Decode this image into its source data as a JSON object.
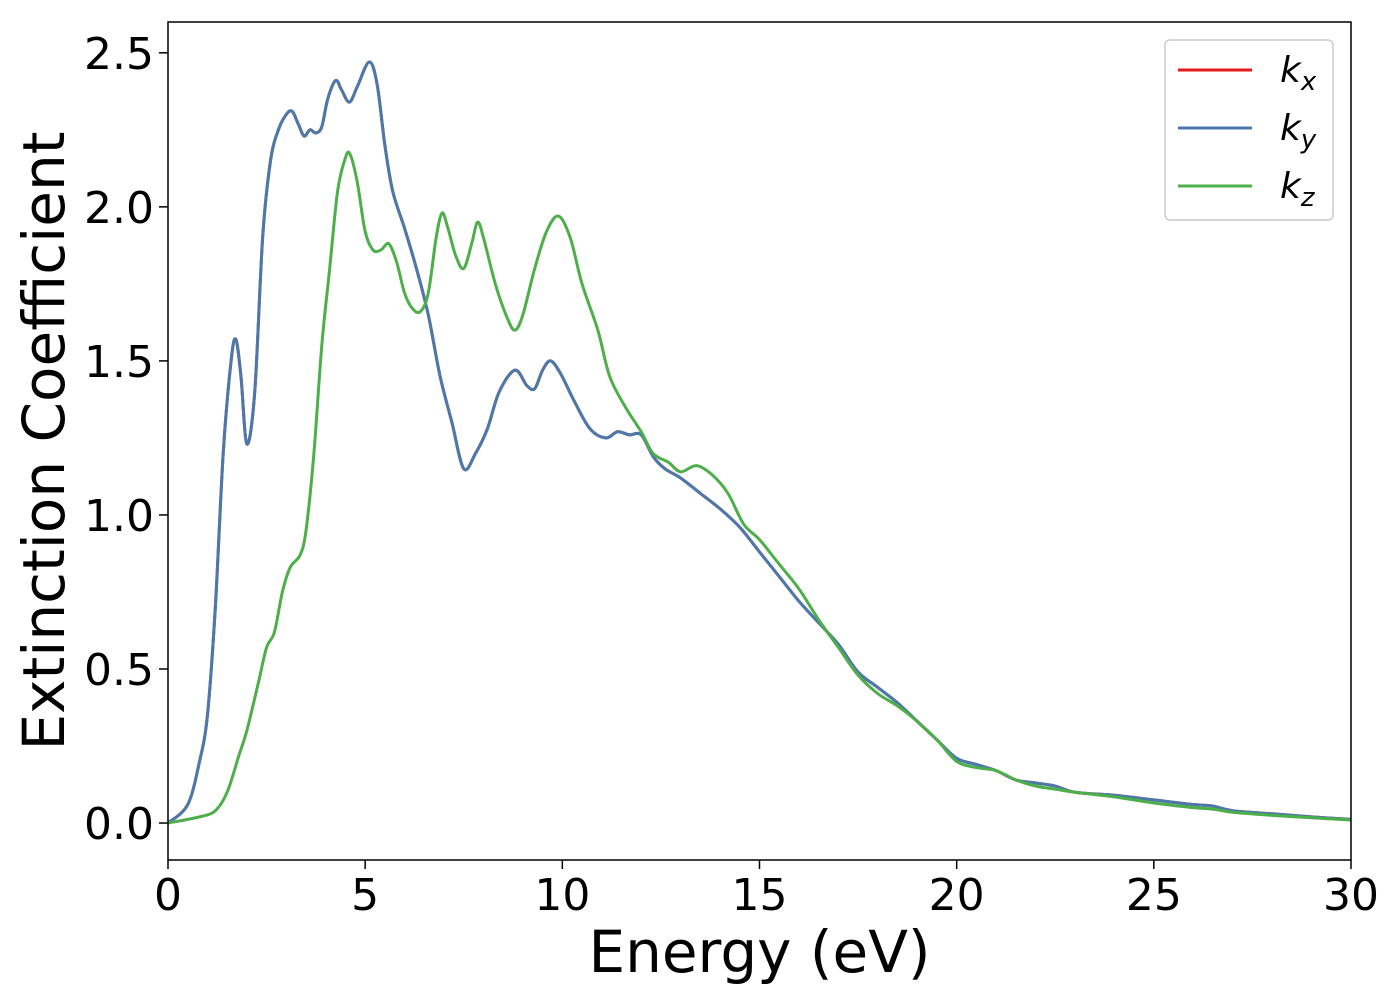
{
  "chart_data": {
    "type": "line",
    "xlabel": "Energy (eV)",
    "ylabel": "Extinction Coefficient",
    "xlim": [
      0,
      30
    ],
    "ylim": [
      -0.12,
      2.6
    ],
    "xticks": [
      0,
      5,
      10,
      15,
      20,
      25,
      30
    ],
    "yticks": [
      0.0,
      0.5,
      1.0,
      1.5,
      2.0,
      2.5
    ],
    "xtick_labels": [
      "0",
      "5",
      "10",
      "15",
      "20",
      "25",
      "30"
    ],
    "ytick_labels": [
      "0.0",
      "0.5",
      "1.0",
      "1.5",
      "2.0",
      "2.5"
    ],
    "grid": false,
    "legend_position": "top-right",
    "series": [
      {
        "name": "k",
        "subscript": "x",
        "color": "#e41a1c",
        "points": [
          [
            0,
            0
          ],
          [
            0.5,
            0.06
          ],
          [
            0.8,
            0.2
          ],
          [
            1.0,
            0.35
          ],
          [
            1.2,
            0.7
          ],
          [
            1.4,
            1.2
          ],
          [
            1.6,
            1.5
          ],
          [
            1.72,
            1.57
          ],
          [
            1.85,
            1.45
          ],
          [
            2.0,
            1.23
          ],
          [
            2.2,
            1.4
          ],
          [
            2.4,
            1.9
          ],
          [
            2.6,
            2.15
          ],
          [
            2.8,
            2.25
          ],
          [
            3.0,
            2.3
          ],
          [
            3.15,
            2.31
          ],
          [
            3.3,
            2.27
          ],
          [
            3.45,
            2.23
          ],
          [
            3.6,
            2.25
          ],
          [
            3.75,
            2.24
          ],
          [
            3.9,
            2.26
          ],
          [
            4.05,
            2.35
          ],
          [
            4.25,
            2.41
          ],
          [
            4.4,
            2.38
          ],
          [
            4.6,
            2.34
          ],
          [
            4.8,
            2.39
          ],
          [
            5.1,
            2.47
          ],
          [
            5.3,
            2.4
          ],
          [
            5.5,
            2.2
          ],
          [
            5.7,
            2.05
          ],
          [
            6.0,
            1.93
          ],
          [
            6.3,
            1.8
          ],
          [
            6.6,
            1.65
          ],
          [
            6.9,
            1.45
          ],
          [
            7.2,
            1.3
          ],
          [
            7.5,
            1.15
          ],
          [
            7.8,
            1.2
          ],
          [
            8.1,
            1.28
          ],
          [
            8.4,
            1.4
          ],
          [
            8.8,
            1.47
          ],
          [
            9.1,
            1.42
          ],
          [
            9.3,
            1.41
          ],
          [
            9.5,
            1.47
          ],
          [
            9.7,
            1.5
          ],
          [
            9.95,
            1.46
          ],
          [
            10.3,
            1.37
          ],
          [
            10.7,
            1.28
          ],
          [
            11.1,
            1.25
          ],
          [
            11.4,
            1.27
          ],
          [
            11.7,
            1.26
          ],
          [
            12.0,
            1.26
          ],
          [
            12.3,
            1.19
          ],
          [
            12.6,
            1.15
          ],
          [
            13.0,
            1.12
          ],
          [
            13.5,
            1.07
          ],
          [
            14.0,
            1.02
          ],
          [
            14.5,
            0.96
          ],
          [
            15.0,
            0.88
          ],
          [
            15.5,
            0.8
          ],
          [
            16.0,
            0.72
          ],
          [
            16.5,
            0.65
          ],
          [
            17.0,
            0.58
          ],
          [
            17.5,
            0.49
          ],
          [
            18.0,
            0.44
          ],
          [
            18.5,
            0.39
          ],
          [
            19.0,
            0.33
          ],
          [
            19.5,
            0.27
          ],
          [
            20.0,
            0.21
          ],
          [
            20.5,
            0.19
          ],
          [
            21.0,
            0.17
          ],
          [
            21.5,
            0.14
          ],
          [
            22.0,
            0.13
          ],
          [
            22.5,
            0.12
          ],
          [
            23.0,
            0.1
          ],
          [
            24.0,
            0.09
          ],
          [
            25.0,
            0.075
          ],
          [
            26.0,
            0.06
          ],
          [
            26.5,
            0.055
          ],
          [
            27.0,
            0.04
          ],
          [
            28.0,
            0.03
          ],
          [
            29.0,
            0.02
          ],
          [
            30.0,
            0.012
          ]
        ]
      },
      {
        "name": "k",
        "subscript": "y",
        "color": "#4a7aab",
        "points": [
          [
            0,
            0
          ],
          [
            0.5,
            0.06
          ],
          [
            0.8,
            0.2
          ],
          [
            1.0,
            0.35
          ],
          [
            1.2,
            0.7
          ],
          [
            1.4,
            1.2
          ],
          [
            1.6,
            1.5
          ],
          [
            1.72,
            1.57
          ],
          [
            1.85,
            1.45
          ],
          [
            2.0,
            1.23
          ],
          [
            2.2,
            1.4
          ],
          [
            2.4,
            1.9
          ],
          [
            2.6,
            2.15
          ],
          [
            2.8,
            2.25
          ],
          [
            3.0,
            2.3
          ],
          [
            3.15,
            2.31
          ],
          [
            3.3,
            2.27
          ],
          [
            3.45,
            2.23
          ],
          [
            3.6,
            2.25
          ],
          [
            3.75,
            2.24
          ],
          [
            3.9,
            2.26
          ],
          [
            4.05,
            2.35
          ],
          [
            4.25,
            2.41
          ],
          [
            4.4,
            2.38
          ],
          [
            4.6,
            2.34
          ],
          [
            4.8,
            2.39
          ],
          [
            5.1,
            2.47
          ],
          [
            5.3,
            2.4
          ],
          [
            5.5,
            2.2
          ],
          [
            5.7,
            2.05
          ],
          [
            6.0,
            1.93
          ],
          [
            6.3,
            1.8
          ],
          [
            6.6,
            1.65
          ],
          [
            6.9,
            1.45
          ],
          [
            7.2,
            1.3
          ],
          [
            7.5,
            1.15
          ],
          [
            7.8,
            1.2
          ],
          [
            8.1,
            1.28
          ],
          [
            8.4,
            1.4
          ],
          [
            8.8,
            1.47
          ],
          [
            9.1,
            1.42
          ],
          [
            9.3,
            1.41
          ],
          [
            9.5,
            1.47
          ],
          [
            9.7,
            1.5
          ],
          [
            9.95,
            1.46
          ],
          [
            10.3,
            1.37
          ],
          [
            10.7,
            1.28
          ],
          [
            11.1,
            1.25
          ],
          [
            11.4,
            1.27
          ],
          [
            11.7,
            1.26
          ],
          [
            12.0,
            1.26
          ],
          [
            12.3,
            1.19
          ],
          [
            12.6,
            1.15
          ],
          [
            13.0,
            1.12
          ],
          [
            13.5,
            1.07
          ],
          [
            14.0,
            1.02
          ],
          [
            14.5,
            0.96
          ],
          [
            15.0,
            0.88
          ],
          [
            15.5,
            0.8
          ],
          [
            16.0,
            0.72
          ],
          [
            16.5,
            0.65
          ],
          [
            17.0,
            0.58
          ],
          [
            17.5,
            0.49
          ],
          [
            18.0,
            0.44
          ],
          [
            18.5,
            0.39
          ],
          [
            19.0,
            0.33
          ],
          [
            19.5,
            0.27
          ],
          [
            20.0,
            0.21
          ],
          [
            20.5,
            0.19
          ],
          [
            21.0,
            0.17
          ],
          [
            21.5,
            0.14
          ],
          [
            22.0,
            0.13
          ],
          [
            22.5,
            0.12
          ],
          [
            23.0,
            0.1
          ],
          [
            24.0,
            0.09
          ],
          [
            25.0,
            0.075
          ],
          [
            26.0,
            0.06
          ],
          [
            26.5,
            0.055
          ],
          [
            27.0,
            0.04
          ],
          [
            28.0,
            0.03
          ],
          [
            29.0,
            0.02
          ],
          [
            30.0,
            0.012
          ]
        ]
      },
      {
        "name": "k",
        "subscript": "z",
        "color": "#4daf4a",
        "points": [
          [
            0,
            0
          ],
          [
            0.8,
            0.02
          ],
          [
            1.2,
            0.04
          ],
          [
            1.5,
            0.1
          ],
          [
            1.8,
            0.22
          ],
          [
            2.0,
            0.3
          ],
          [
            2.3,
            0.46
          ],
          [
            2.5,
            0.57
          ],
          [
            2.7,
            0.62
          ],
          [
            2.9,
            0.75
          ],
          [
            3.1,
            0.83
          ],
          [
            3.35,
            0.87
          ],
          [
            3.5,
            0.95
          ],
          [
            3.7,
            1.2
          ],
          [
            3.9,
            1.55
          ],
          [
            4.1,
            1.8
          ],
          [
            4.3,
            2.05
          ],
          [
            4.5,
            2.16
          ],
          [
            4.62,
            2.17
          ],
          [
            4.8,
            2.08
          ],
          [
            5.0,
            1.92
          ],
          [
            5.2,
            1.86
          ],
          [
            5.4,
            1.86
          ],
          [
            5.6,
            1.88
          ],
          [
            5.8,
            1.82
          ],
          [
            6.0,
            1.72
          ],
          [
            6.2,
            1.67
          ],
          [
            6.4,
            1.66
          ],
          [
            6.6,
            1.72
          ],
          [
            6.8,
            1.9
          ],
          [
            6.95,
            1.98
          ],
          [
            7.1,
            1.93
          ],
          [
            7.3,
            1.84
          ],
          [
            7.5,
            1.8
          ],
          [
            7.7,
            1.88
          ],
          [
            7.85,
            1.95
          ],
          [
            8.0,
            1.9
          ],
          [
            8.3,
            1.75
          ],
          [
            8.6,
            1.64
          ],
          [
            8.8,
            1.6
          ],
          [
            9.0,
            1.65
          ],
          [
            9.3,
            1.8
          ],
          [
            9.6,
            1.92
          ],
          [
            9.9,
            1.97
          ],
          [
            10.2,
            1.9
          ],
          [
            10.5,
            1.75
          ],
          [
            10.9,
            1.6
          ],
          [
            11.2,
            1.45
          ],
          [
            11.6,
            1.35
          ],
          [
            12.0,
            1.27
          ],
          [
            12.3,
            1.2
          ],
          [
            12.7,
            1.17
          ],
          [
            13.0,
            1.14
          ],
          [
            13.4,
            1.16
          ],
          [
            13.8,
            1.13
          ],
          [
            14.2,
            1.07
          ],
          [
            14.6,
            0.97
          ],
          [
            15.0,
            0.92
          ],
          [
            15.5,
            0.84
          ],
          [
            16.0,
            0.76
          ],
          [
            16.5,
            0.66
          ],
          [
            17.0,
            0.57
          ],
          [
            17.5,
            0.48
          ],
          [
            18.0,
            0.42
          ],
          [
            18.5,
            0.38
          ],
          [
            19.0,
            0.33
          ],
          [
            19.5,
            0.27
          ],
          [
            20.0,
            0.2
          ],
          [
            20.5,
            0.18
          ],
          [
            21.0,
            0.17
          ],
          [
            21.5,
            0.14
          ],
          [
            22.0,
            0.12
          ],
          [
            22.5,
            0.11
          ],
          [
            23.0,
            0.1
          ],
          [
            24.0,
            0.085
          ],
          [
            25.0,
            0.065
          ],
          [
            26.0,
            0.05
          ],
          [
            26.5,
            0.045
          ],
          [
            27.0,
            0.035
          ],
          [
            28.0,
            0.025
          ],
          [
            29.0,
            0.017
          ],
          [
            30.0,
            0.01
          ]
        ]
      }
    ]
  }
}
